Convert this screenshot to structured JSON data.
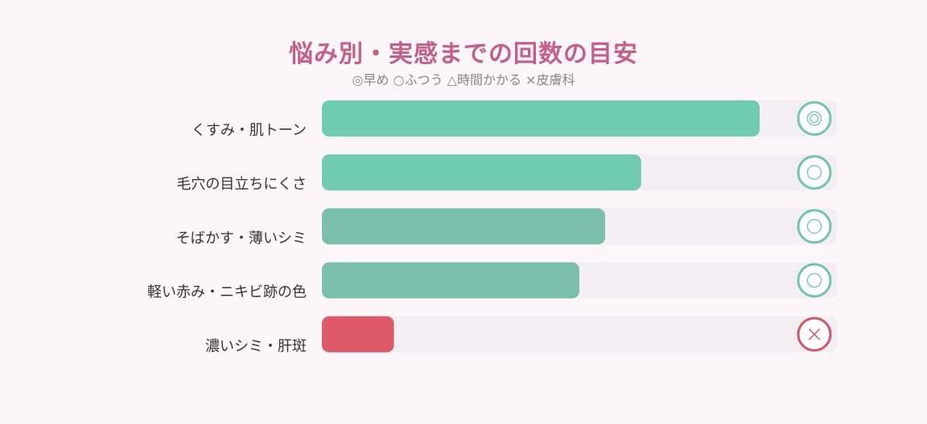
{
  "chart_data": {
    "type": "bar",
    "orientation": "horizontal",
    "title": "悩み別・実感までの回数の目安",
    "subtitle": "◎早め ○ふつう △時間かかる ×皮膚科",
    "categories": [
      "くすみ・肌トーン",
      "毛穴の目立ちにくさ",
      "そばかす・薄いシミ",
      "軽い赤み・ニキビ跡の色",
      "濃いシミ・肝斑"
    ],
    "values": [
      0.85,
      0.62,
      0.55,
      0.5,
      0.14
    ],
    "xlim": [
      0,
      1
    ],
    "ratings": [
      "◎",
      "○",
      "○",
      "○",
      "×"
    ],
    "colors": [
      "#6fcbb2",
      "#6fcbb2",
      "#7abfaa",
      "#7abfaa",
      "#df5a69"
    ],
    "rating_colors": [
      "#6fc5ad",
      "#6fc5ad",
      "#6fc5ad",
      "#6fc5ad",
      "#d2556a"
    ],
    "track_color": "#f3eef1",
    "grid": false,
    "legend": "none"
  }
}
